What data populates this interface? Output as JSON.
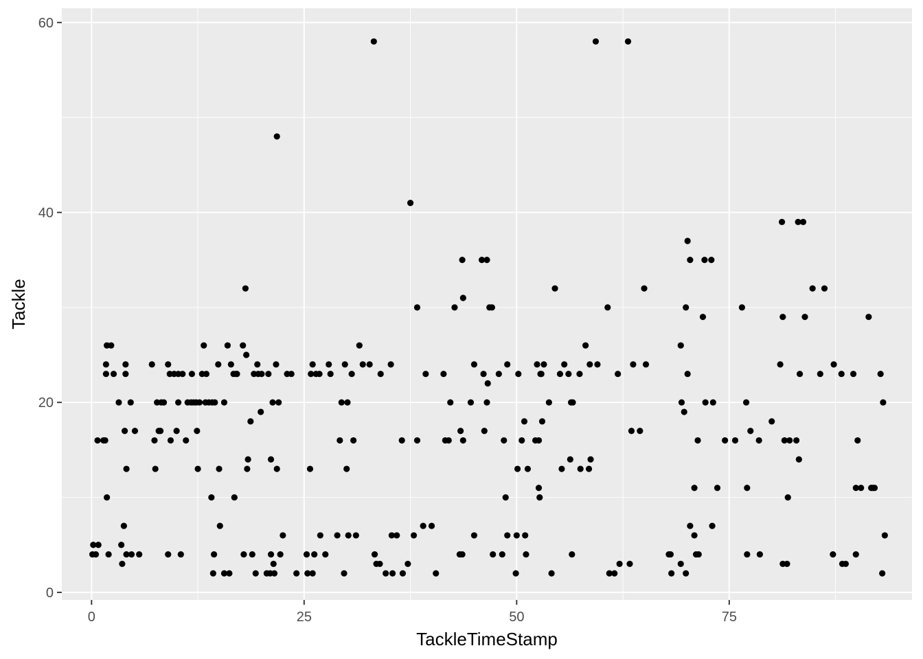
{
  "chart_data": {
    "type": "scatter",
    "title": "",
    "xlabel": "TackleTimeStamp",
    "ylabel": "Tackle",
    "xlim": [
      -3.5,
      96.5
    ],
    "ylim": [
      -0.8,
      61.5
    ],
    "x_ticks": [
      0,
      25,
      50,
      75
    ],
    "x_tick_labels": [
      "0",
      "25",
      "50",
      "75"
    ],
    "y_ticks": [
      0,
      20,
      40,
      60
    ],
    "y_tick_labels": [
      "0",
      "20",
      "40",
      "60"
    ],
    "grid": true,
    "legend": "none",
    "colors": {
      "panel": "#ebebeb",
      "grid_major": "#ffffff",
      "point": "#000000",
      "tick_label": "#4d4d4d",
      "tick": "#333333"
    },
    "points": [
      [
        0.1,
        4
      ],
      [
        0.2,
        5
      ],
      [
        0.5,
        4
      ],
      [
        0.7,
        16
      ],
      [
        0.8,
        5
      ],
      [
        1.4,
        16
      ],
      [
        1.6,
        16
      ],
      [
        1.7,
        24
      ],
      [
        1.7,
        23
      ],
      [
        1.8,
        10
      ],
      [
        1.8,
        26
      ],
      [
        2.0,
        4
      ],
      [
        2.3,
        26
      ],
      [
        2.6,
        23
      ],
      [
        3.2,
        20
      ],
      [
        3.5,
        5
      ],
      [
        3.6,
        3
      ],
      [
        3.8,
        7
      ],
      [
        3.9,
        17
      ],
      [
        4.0,
        24
      ],
      [
        4.0,
        23
      ],
      [
        4.1,
        13
      ],
      [
        4.1,
        4
      ],
      [
        4.6,
        20
      ],
      [
        4.7,
        4
      ],
      [
        5.1,
        17
      ],
      [
        5.6,
        4
      ],
      [
        7.1,
        24
      ],
      [
        7.4,
        16
      ],
      [
        7.5,
        13
      ],
      [
        7.7,
        20
      ],
      [
        7.9,
        17
      ],
      [
        8.2,
        20
      ],
      [
        8.1,
        17
      ],
      [
        8.5,
        20
      ],
      [
        9.0,
        4
      ],
      [
        9.0,
        24
      ],
      [
        9.2,
        23
      ],
      [
        9.3,
        16
      ],
      [
        9.7,
        23
      ],
      [
        10.0,
        17
      ],
      [
        10.2,
        20
      ],
      [
        10.2,
        23
      ],
      [
        10.5,
        4
      ],
      [
        10.7,
        23
      ],
      [
        11.1,
        16
      ],
      [
        11.3,
        20
      ],
      [
        11.7,
        20
      ],
      [
        11.8,
        23
      ],
      [
        12.0,
        20
      ],
      [
        12.3,
        20
      ],
      [
        12.4,
        17
      ],
      [
        12.5,
        13
      ],
      [
        12.7,
        20
      ],
      [
        13.0,
        23
      ],
      [
        13.2,
        26
      ],
      [
        13.4,
        20
      ],
      [
        13.5,
        23
      ],
      [
        13.8,
        20
      ],
      [
        14.1,
        10
      ],
      [
        14.2,
        20
      ],
      [
        14.3,
        2
      ],
      [
        14.4,
        4
      ],
      [
        14.5,
        20
      ],
      [
        14.9,
        24
      ],
      [
        15.0,
        13
      ],
      [
        15.1,
        7
      ],
      [
        15.6,
        20
      ],
      [
        15.6,
        2
      ],
      [
        16.0,
        26
      ],
      [
        16.2,
        2
      ],
      [
        16.4,
        24
      ],
      [
        16.7,
        23
      ],
      [
        16.8,
        10
      ],
      [
        17.0,
        23
      ],
      [
        17.1,
        23
      ],
      [
        17.8,
        26
      ],
      [
        17.9,
        4
      ],
      [
        18.1,
        32
      ],
      [
        18.2,
        25
      ],
      [
        18.3,
        13
      ],
      [
        18.4,
        14
      ],
      [
        18.7,
        18
      ],
      [
        18.9,
        4
      ],
      [
        19.1,
        23
      ],
      [
        19.3,
        2
      ],
      [
        19.5,
        24
      ],
      [
        19.6,
        23
      ],
      [
        19.9,
        19
      ],
      [
        20.0,
        23
      ],
      [
        20.6,
        2
      ],
      [
        20.8,
        23
      ],
      [
        21.0,
        2
      ],
      [
        21.1,
        14
      ],
      [
        21.1,
        4
      ],
      [
        21.3,
        20
      ],
      [
        21.4,
        3
      ],
      [
        21.5,
        2
      ],
      [
        21.7,
        24
      ],
      [
        21.8,
        48
      ],
      [
        21.8,
        13
      ],
      [
        22.0,
        20
      ],
      [
        22.2,
        4
      ],
      [
        22.5,
        6
      ],
      [
        23.0,
        23
      ],
      [
        23.5,
        23
      ],
      [
        24.1,
        2
      ],
      [
        25.3,
        4
      ],
      [
        25.4,
        2
      ],
      [
        25.7,
        13
      ],
      [
        25.8,
        23
      ],
      [
        26.0,
        2
      ],
      [
        26.0,
        24
      ],
      [
        26.2,
        4
      ],
      [
        26.4,
        23
      ],
      [
        26.9,
        6
      ],
      [
        26.8,
        23
      ],
      [
        27.5,
        4
      ],
      [
        27.9,
        24
      ],
      [
        28.1,
        23
      ],
      [
        28.9,
        6
      ],
      [
        29.2,
        16
      ],
      [
        29.4,
        20
      ],
      [
        29.7,
        2
      ],
      [
        29.8,
        24
      ],
      [
        30.0,
        13
      ],
      [
        30.1,
        20
      ],
      [
        30.2,
        6
      ],
      [
        30.6,
        23
      ],
      [
        30.8,
        16
      ],
      [
        31.1,
        6
      ],
      [
        31.5,
        26
      ],
      [
        31.9,
        24
      ],
      [
        32.7,
        24
      ],
      [
        33.2,
        58
      ],
      [
        33.3,
        4
      ],
      [
        33.5,
        3
      ],
      [
        33.9,
        3
      ],
      [
        34.0,
        23
      ],
      [
        34.6,
        2
      ],
      [
        35.2,
        24
      ],
      [
        35.3,
        6
      ],
      [
        35.4,
        2
      ],
      [
        35.9,
        6
      ],
      [
        36.5,
        16
      ],
      [
        36.6,
        2
      ],
      [
        37.2,
        3
      ],
      [
        37.5,
        41
      ],
      [
        37.9,
        6
      ],
      [
        38.3,
        16
      ],
      [
        38.3,
        30
      ],
      [
        39.0,
        7
      ],
      [
        39.3,
        23
      ],
      [
        40.0,
        7
      ],
      [
        40.5,
        2
      ],
      [
        41.4,
        23
      ],
      [
        41.6,
        16
      ],
      [
        42.0,
        16
      ],
      [
        42.2,
        20
      ],
      [
        42.7,
        30
      ],
      [
        43.3,
        4
      ],
      [
        43.4,
        17
      ],
      [
        43.6,
        35
      ],
      [
        43.6,
        4
      ],
      [
        43.7,
        31
      ],
      [
        43.7,
        16
      ],
      [
        44.6,
        20
      ],
      [
        45.0,
        6
      ],
      [
        45.0,
        24
      ],
      [
        45.9,
        35
      ],
      [
        46.1,
        23
      ],
      [
        46.2,
        17
      ],
      [
        46.5,
        35
      ],
      [
        46.5,
        20
      ],
      [
        46.6,
        22
      ],
      [
        46.8,
        30
      ],
      [
        47.1,
        30
      ],
      [
        47.2,
        4
      ],
      [
        47.9,
        23
      ],
      [
        48.3,
        4
      ],
      [
        48.5,
        16
      ],
      [
        48.7,
        10
      ],
      [
        48.9,
        24
      ],
      [
        48.9,
        6
      ],
      [
        49.9,
        2
      ],
      [
        50.0,
        6
      ],
      [
        50.1,
        13
      ],
      [
        50.2,
        23
      ],
      [
        50.6,
        16
      ],
      [
        50.9,
        18
      ],
      [
        51.0,
        6
      ],
      [
        51.1,
        4
      ],
      [
        51.3,
        13
      ],
      [
        52.2,
        16
      ],
      [
        52.4,
        24
      ],
      [
        52.6,
        16
      ],
      [
        52.6,
        11
      ],
      [
        52.7,
        10
      ],
      [
        52.8,
        23
      ],
      [
        52.9,
        23
      ],
      [
        53.0,
        18
      ],
      [
        53.2,
        24
      ],
      [
        53.8,
        20
      ],
      [
        54.1,
        2
      ],
      [
        54.5,
        32
      ],
      [
        55.1,
        23
      ],
      [
        55.3,
        13
      ],
      [
        55.6,
        24
      ],
      [
        56.1,
        23
      ],
      [
        56.3,
        14
      ],
      [
        56.4,
        20
      ],
      [
        56.5,
        4
      ],
      [
        56.6,
        20
      ],
      [
        57.4,
        23
      ],
      [
        57.5,
        13
      ],
      [
        58.1,
        26
      ],
      [
        58.5,
        13
      ],
      [
        58.6,
        24
      ],
      [
        58.7,
        14
      ],
      [
        59.3,
        58
      ],
      [
        59.5,
        24
      ],
      [
        60.7,
        30
      ],
      [
        60.9,
        2
      ],
      [
        61.5,
        2
      ],
      [
        61.9,
        23
      ],
      [
        62.1,
        3
      ],
      [
        63.1,
        58
      ],
      [
        63.3,
        3
      ],
      [
        63.5,
        17
      ],
      [
        63.7,
        24
      ],
      [
        64.5,
        17
      ],
      [
        65.0,
        32
      ],
      [
        65.2,
        24
      ],
      [
        67.9,
        4
      ],
      [
        68.1,
        4
      ],
      [
        68.2,
        2
      ],
      [
        69.3,
        26
      ],
      [
        69.3,
        3
      ],
      [
        69.4,
        20
      ],
      [
        69.7,
        19
      ],
      [
        69.9,
        2
      ],
      [
        69.9,
        30
      ],
      [
        70.1,
        37
      ],
      [
        70.1,
        23
      ],
      [
        70.4,
        35
      ],
      [
        70.4,
        7
      ],
      [
        70.9,
        6
      ],
      [
        70.9,
        11
      ],
      [
        71.1,
        4
      ],
      [
        71.3,
        16
      ],
      [
        71.4,
        4
      ],
      [
        71.9,
        29
      ],
      [
        72.1,
        35
      ],
      [
        72.2,
        20
      ],
      [
        72.9,
        35
      ],
      [
        73.0,
        7
      ],
      [
        73.1,
        20
      ],
      [
        73.6,
        11
      ],
      [
        74.5,
        16
      ],
      [
        75.7,
        16
      ],
      [
        76.5,
        30
      ],
      [
        77.0,
        20
      ],
      [
        77.1,
        4
      ],
      [
        77.1,
        11
      ],
      [
        77.5,
        17
      ],
      [
        78.5,
        16
      ],
      [
        78.6,
        4
      ],
      [
        80.0,
        18
      ],
      [
        81.0,
        24
      ],
      [
        81.2,
        39
      ],
      [
        81.3,
        29
      ],
      [
        81.3,
        3
      ],
      [
        81.5,
        16
      ],
      [
        81.8,
        3
      ],
      [
        81.9,
        10
      ],
      [
        82.1,
        16
      ],
      [
        82.9,
        16
      ],
      [
        83.1,
        39
      ],
      [
        83.2,
        14
      ],
      [
        83.3,
        23
      ],
      [
        83.7,
        39
      ],
      [
        83.9,
        29
      ],
      [
        84.8,
        32
      ],
      [
        85.7,
        23
      ],
      [
        86.2,
        32
      ],
      [
        87.2,
        4
      ],
      [
        87.3,
        24
      ],
      [
        88.2,
        23
      ],
      [
        88.3,
        3
      ],
      [
        88.7,
        3
      ],
      [
        89.6,
        23
      ],
      [
        89.9,
        11
      ],
      [
        89.9,
        4
      ],
      [
        90.1,
        16
      ],
      [
        90.5,
        11
      ],
      [
        91.4,
        29
      ],
      [
        91.7,
        11
      ],
      [
        91.9,
        11
      ],
      [
        92.1,
        11
      ],
      [
        92.8,
        23
      ],
      [
        93.0,
        2
      ],
      [
        93.1,
        20
      ],
      [
        93.3,
        6
      ]
    ]
  }
}
